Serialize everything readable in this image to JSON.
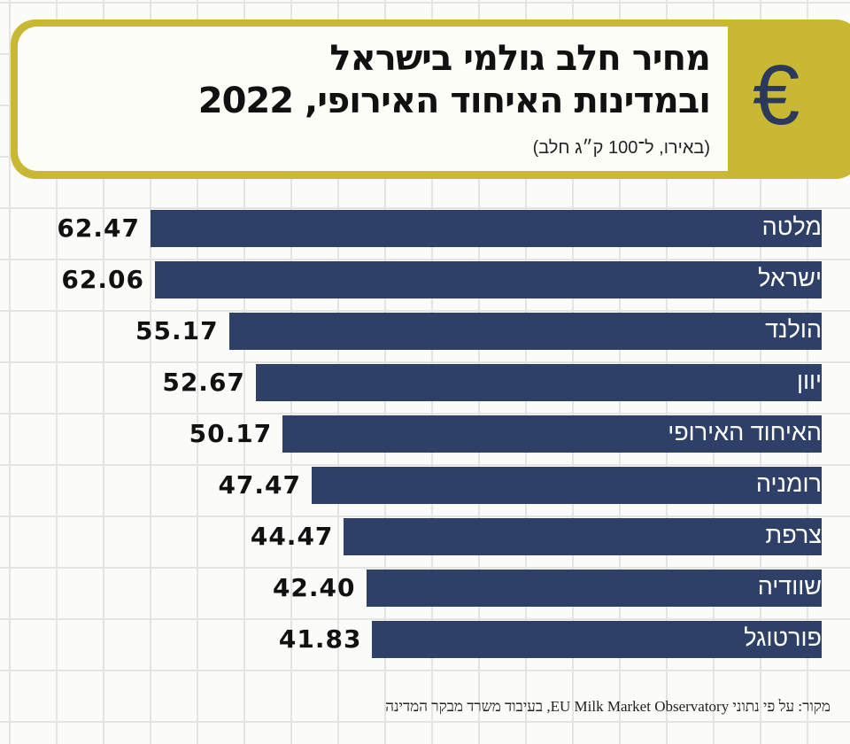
{
  "chart_data": {
    "type": "bar",
    "orientation": "horizontal",
    "title": "מחיר חלב גולמי בישראל ובמדינות האיחוד האירופי, 2022",
    "title_line1": "מחיר חלב גולמי בישראל",
    "title_line2": "ובמדינות האיחוד האירופי, 2022",
    "subtitle": "(באירו, ל־100 ק״ג חלב)",
    "categories": [
      "מלטה",
      "ישראל",
      "הולנד",
      "יוון",
      "האיחוד האירופי",
      "רומניה",
      "צרפת",
      "שוודיה",
      "פורטוגל"
    ],
    "values": [
      62.47,
      62.06,
      55.17,
      52.67,
      50.17,
      47.47,
      44.47,
      42.4,
      41.83
    ],
    "value_labels": [
      "62.47",
      "62.06",
      "55.17",
      "52.67",
      "50.17",
      "47.47",
      "44.47",
      "42.40",
      "41.83"
    ],
    "xlabel": "",
    "ylabel": "",
    "xlim": [
      0,
      62.47
    ],
    "grid": false,
    "legend": "none"
  },
  "source": "מקור: על פי נתוני EU Milk Market Observatory, בעיבוד משרד מבקר המדינה",
  "icon": "euro-icon",
  "colors": {
    "bar": "#2e4068",
    "frame": "#c8b834",
    "icon": "#2b3a5c"
  }
}
